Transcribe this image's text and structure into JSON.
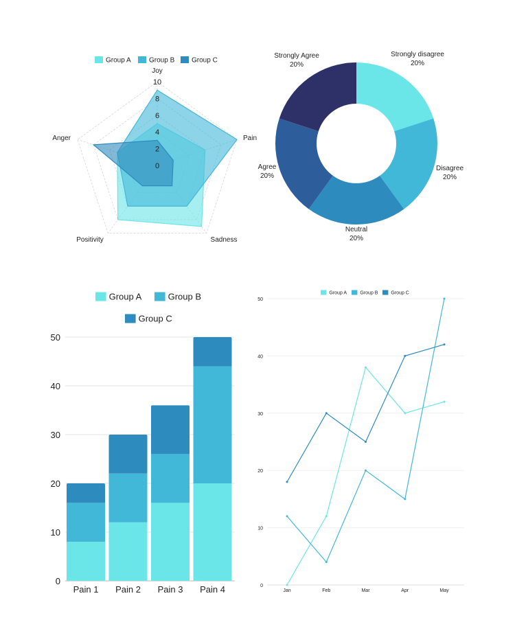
{
  "colors": {
    "group_a": "#6ae5e8",
    "group_b": "#42b8d8",
    "group_c": "#2e8bbd",
    "agree": "#2e5d9b",
    "strongly_agree": "#2e3168"
  },
  "chart_data": [
    {
      "type": "radar",
      "legend": [
        "Group A",
        "Group B",
        "Group C"
      ],
      "legend_position": "top",
      "axes": [
        "Joy",
        "Pain",
        "Sadness",
        "Positivity",
        "Anger"
      ],
      "ticks": [
        "0",
        "2",
        "4",
        "6",
        "8",
        "10"
      ],
      "range": [
        0,
        10
      ],
      "series": [
        {
          "name": "Group A",
          "values": [
            5,
            6,
            9,
            8,
            5
          ]
        },
        {
          "name": "Group B",
          "values": [
            9,
            10,
            6,
            6,
            5
          ]
        },
        {
          "name": "Group C",
          "values": [
            3,
            2,
            3,
            3,
            8
          ]
        }
      ]
    },
    {
      "type": "pie",
      "variant": "donut",
      "slices": [
        {
          "label": "Strongly disagree",
          "value": 20,
          "pct": "20%"
        },
        {
          "label": "Disagree",
          "value": 20,
          "pct": "20%"
        },
        {
          "label": "Neutral",
          "value": 20,
          "pct": "20%"
        },
        {
          "label": "Agree",
          "value": 20,
          "pct": "20%"
        },
        {
          "label": "Strongly Agree",
          "value": 20,
          "pct": "20%"
        }
      ]
    },
    {
      "type": "bar",
      "stacked": true,
      "categories": [
        "Pain 1",
        "Pain 2",
        "Pain 3",
        "Pain 4"
      ],
      "series": [
        {
          "name": "Group A",
          "values": [
            8,
            12,
            16,
            20
          ]
        },
        {
          "name": "Group B",
          "values": [
            8,
            10,
            10,
            24
          ]
        },
        {
          "name": "Group C",
          "values": [
            4,
            8,
            10,
            6
          ]
        }
      ],
      "yticks": [
        "0",
        "10",
        "20",
        "30",
        "40",
        "50"
      ],
      "ylim": [
        0,
        50
      ],
      "grid": true,
      "legend_position": "top"
    },
    {
      "type": "line",
      "categories": [
        "Jan",
        "Feb",
        "Mar",
        "Apr",
        "May"
      ],
      "series": [
        {
          "name": "Group A",
          "values": [
            0,
            12,
            38,
            30,
            32
          ]
        },
        {
          "name": "Group B",
          "values": [
            12,
            4,
            20,
            15,
            50
          ]
        },
        {
          "name": "Group C",
          "values": [
            18,
            30,
            25,
            40,
            42
          ]
        }
      ],
      "yticks": [
        "0",
        "10",
        "20",
        "30",
        "40",
        "50"
      ],
      "ylim": [
        0,
        50
      ],
      "grid": true,
      "legend_position": "top"
    }
  ]
}
